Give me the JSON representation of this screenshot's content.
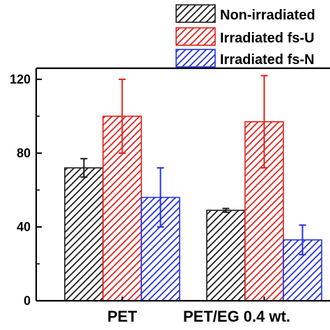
{
  "chart_data": {
    "type": "bar",
    "categories": [
      "PET",
      "PET/EG 0.4 wt."
    ],
    "series": [
      {
        "name": "Non-irradiated",
        "values": [
          72,
          49
        ],
        "errors": [
          5,
          1
        ],
        "color": "#1a1a1a"
      },
      {
        "name": "Irradiated fs-U",
        "values": [
          100,
          97
        ],
        "errors": [
          20,
          25
        ],
        "color": "#e0201b"
      },
      {
        "name": "Irradiated fs-N",
        "values": [
          56,
          33
        ],
        "errors": [
          16,
          8
        ],
        "color": "#2230e0"
      }
    ],
    "ylim": [
      0,
      126
    ],
    "yticks": [
      "0",
      "40",
      "80",
      "120"
    ],
    "ytick_values": [
      0,
      40,
      80,
      120
    ],
    "legend_position": "top-right",
    "grid": false,
    "hatch": "diagonal"
  }
}
